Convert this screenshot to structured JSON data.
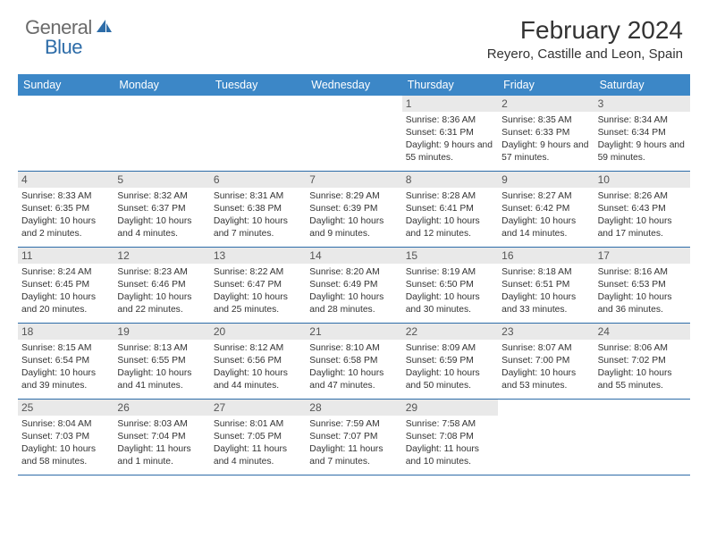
{
  "logo": {
    "gen": "General",
    "blue": "Blue"
  },
  "title": "February 2024",
  "location": "Reyero, Castille and Leon, Spain",
  "day_names": [
    "Sunday",
    "Monday",
    "Tuesday",
    "Wednesday",
    "Thursday",
    "Friday",
    "Saturday"
  ],
  "colors": {
    "header_bg": "#3c87c7",
    "border": "#2d6ca8",
    "daynum_bg": "#e9e9e9"
  },
  "weeks": [
    [
      {
        "empty": true
      },
      {
        "empty": true
      },
      {
        "empty": true
      },
      {
        "empty": true
      },
      {
        "day": "1",
        "sunrise": "Sunrise: 8:36 AM",
        "sunset": "Sunset: 6:31 PM",
        "daylight": "Daylight: 9 hours and 55 minutes."
      },
      {
        "day": "2",
        "sunrise": "Sunrise: 8:35 AM",
        "sunset": "Sunset: 6:33 PM",
        "daylight": "Daylight: 9 hours and 57 minutes."
      },
      {
        "day": "3",
        "sunrise": "Sunrise: 8:34 AM",
        "sunset": "Sunset: 6:34 PM",
        "daylight": "Daylight: 9 hours and 59 minutes."
      }
    ],
    [
      {
        "day": "4",
        "sunrise": "Sunrise: 8:33 AM",
        "sunset": "Sunset: 6:35 PM",
        "daylight": "Daylight: 10 hours and 2 minutes."
      },
      {
        "day": "5",
        "sunrise": "Sunrise: 8:32 AM",
        "sunset": "Sunset: 6:37 PM",
        "daylight": "Daylight: 10 hours and 4 minutes."
      },
      {
        "day": "6",
        "sunrise": "Sunrise: 8:31 AM",
        "sunset": "Sunset: 6:38 PM",
        "daylight": "Daylight: 10 hours and 7 minutes."
      },
      {
        "day": "7",
        "sunrise": "Sunrise: 8:29 AM",
        "sunset": "Sunset: 6:39 PM",
        "daylight": "Daylight: 10 hours and 9 minutes."
      },
      {
        "day": "8",
        "sunrise": "Sunrise: 8:28 AM",
        "sunset": "Sunset: 6:41 PM",
        "daylight": "Daylight: 10 hours and 12 minutes."
      },
      {
        "day": "9",
        "sunrise": "Sunrise: 8:27 AM",
        "sunset": "Sunset: 6:42 PM",
        "daylight": "Daylight: 10 hours and 14 minutes."
      },
      {
        "day": "10",
        "sunrise": "Sunrise: 8:26 AM",
        "sunset": "Sunset: 6:43 PM",
        "daylight": "Daylight: 10 hours and 17 minutes."
      }
    ],
    [
      {
        "day": "11",
        "sunrise": "Sunrise: 8:24 AM",
        "sunset": "Sunset: 6:45 PM",
        "daylight": "Daylight: 10 hours and 20 minutes."
      },
      {
        "day": "12",
        "sunrise": "Sunrise: 8:23 AM",
        "sunset": "Sunset: 6:46 PM",
        "daylight": "Daylight: 10 hours and 22 minutes."
      },
      {
        "day": "13",
        "sunrise": "Sunrise: 8:22 AM",
        "sunset": "Sunset: 6:47 PM",
        "daylight": "Daylight: 10 hours and 25 minutes."
      },
      {
        "day": "14",
        "sunrise": "Sunrise: 8:20 AM",
        "sunset": "Sunset: 6:49 PM",
        "daylight": "Daylight: 10 hours and 28 minutes."
      },
      {
        "day": "15",
        "sunrise": "Sunrise: 8:19 AM",
        "sunset": "Sunset: 6:50 PM",
        "daylight": "Daylight: 10 hours and 30 minutes."
      },
      {
        "day": "16",
        "sunrise": "Sunrise: 8:18 AM",
        "sunset": "Sunset: 6:51 PM",
        "daylight": "Daylight: 10 hours and 33 minutes."
      },
      {
        "day": "17",
        "sunrise": "Sunrise: 8:16 AM",
        "sunset": "Sunset: 6:53 PM",
        "daylight": "Daylight: 10 hours and 36 minutes."
      }
    ],
    [
      {
        "day": "18",
        "sunrise": "Sunrise: 8:15 AM",
        "sunset": "Sunset: 6:54 PM",
        "daylight": "Daylight: 10 hours and 39 minutes."
      },
      {
        "day": "19",
        "sunrise": "Sunrise: 8:13 AM",
        "sunset": "Sunset: 6:55 PM",
        "daylight": "Daylight: 10 hours and 41 minutes."
      },
      {
        "day": "20",
        "sunrise": "Sunrise: 8:12 AM",
        "sunset": "Sunset: 6:56 PM",
        "daylight": "Daylight: 10 hours and 44 minutes."
      },
      {
        "day": "21",
        "sunrise": "Sunrise: 8:10 AM",
        "sunset": "Sunset: 6:58 PM",
        "daylight": "Daylight: 10 hours and 47 minutes."
      },
      {
        "day": "22",
        "sunrise": "Sunrise: 8:09 AM",
        "sunset": "Sunset: 6:59 PM",
        "daylight": "Daylight: 10 hours and 50 minutes."
      },
      {
        "day": "23",
        "sunrise": "Sunrise: 8:07 AM",
        "sunset": "Sunset: 7:00 PM",
        "daylight": "Daylight: 10 hours and 53 minutes."
      },
      {
        "day": "24",
        "sunrise": "Sunrise: 8:06 AM",
        "sunset": "Sunset: 7:02 PM",
        "daylight": "Daylight: 10 hours and 55 minutes."
      }
    ],
    [
      {
        "day": "25",
        "sunrise": "Sunrise: 8:04 AM",
        "sunset": "Sunset: 7:03 PM",
        "daylight": "Daylight: 10 hours and 58 minutes."
      },
      {
        "day": "26",
        "sunrise": "Sunrise: 8:03 AM",
        "sunset": "Sunset: 7:04 PM",
        "daylight": "Daylight: 11 hours and 1 minute."
      },
      {
        "day": "27",
        "sunrise": "Sunrise: 8:01 AM",
        "sunset": "Sunset: 7:05 PM",
        "daylight": "Daylight: 11 hours and 4 minutes."
      },
      {
        "day": "28",
        "sunrise": "Sunrise: 7:59 AM",
        "sunset": "Sunset: 7:07 PM",
        "daylight": "Daylight: 11 hours and 7 minutes."
      },
      {
        "day": "29",
        "sunrise": "Sunrise: 7:58 AM",
        "sunset": "Sunset: 7:08 PM",
        "daylight": "Daylight: 11 hours and 10 minutes."
      },
      {
        "empty": true
      },
      {
        "empty": true
      }
    ]
  ]
}
